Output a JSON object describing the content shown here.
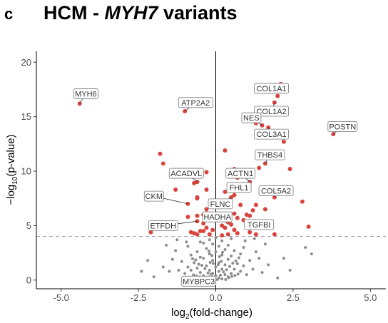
{
  "panel_letter": "c",
  "title": {
    "prefix": "HCM - ",
    "gene": "MYH7",
    "suffix": " variants"
  },
  "colors": {
    "significant": "#d9443e",
    "nonsignificant": "#8c8c8c",
    "threshold": "#999999"
  },
  "chart_data": {
    "type": "scatter",
    "title": "HCM - MYH7 variants",
    "xlabel_prefix": "log",
    "xlabel_sub": "2",
    "xlabel_suffix": "(fold-change)",
    "ylabel_prefix": "−log",
    "ylabel_sub": "10",
    "ylabel_suffix": "(p-value)",
    "xlim": [
      -5.8,
      5.5
    ],
    "ylim": [
      -0.8,
      21
    ],
    "xticks": [
      {
        "value": -5.0,
        "label": "-5.0"
      },
      {
        "value": -2.5,
        "label": "-2.5"
      },
      {
        "value": 0.0,
        "label": "0.0"
      },
      {
        "value": 2.5,
        "label": "2.5"
      },
      {
        "value": 5.0,
        "label": "5.0"
      }
    ],
    "yticks": [
      {
        "value": 0,
        "label": "0"
      },
      {
        "value": 5,
        "label": "5"
      },
      {
        "value": 10,
        "label": "10"
      },
      {
        "value": 15,
        "label": "15"
      },
      {
        "value": 20,
        "label": "20"
      }
    ],
    "threshold_y": 4.0,
    "vline_x": 0,
    "grid": false,
    "significant_points": [
      [
        -4.4,
        16.2
      ],
      [
        -1.0,
        15.5
      ],
      [
        1.5,
        14.2
      ],
      [
        1.9,
        16.3
      ],
      [
        2.1,
        18.0
      ],
      [
        2.0,
        16.9
      ],
      [
        1.3,
        14.4
      ],
      [
        1.7,
        14.0
      ],
      [
        3.8,
        13.4
      ],
      [
        2.2,
        12.7
      ],
      [
        1.6,
        13.2
      ],
      [
        -1.8,
        11.6
      ],
      [
        -1.7,
        10.7
      ],
      [
        1.6,
        10.7
      ],
      [
        1.4,
        10.3
      ],
      [
        0.3,
        11.9
      ],
      [
        0.6,
        10.2
      ],
      [
        2.4,
        10.2
      ],
      [
        0.7,
        9.4
      ],
      [
        1.1,
        9.0
      ],
      [
        0.9,
        8.7
      ],
      [
        -0.6,
        9.0
      ],
      [
        -0.7,
        8.9
      ],
      [
        -0.3,
        9.9
      ],
      [
        -0.3,
        8.3
      ],
      [
        -1.3,
        8.3
      ],
      [
        -0.6,
        7.6
      ],
      [
        -0.6,
        7.5
      ],
      [
        -0.9,
        7.0
      ],
      [
        0.3,
        8.1
      ],
      [
        0.5,
        7.6
      ],
      [
        1.9,
        7.6
      ],
      [
        0.6,
        7.8
      ],
      [
        1.3,
        6.9
      ],
      [
        1.2,
        6.4
      ],
      [
        1.6,
        6.5
      ],
      [
        2.8,
        7.2
      ],
      [
        0.8,
        6.9
      ],
      [
        -0.3,
        6.5
      ],
      [
        -0.3,
        6.1
      ],
      [
        -0.4,
        6.0
      ],
      [
        0.6,
        6.1
      ],
      [
        0.7,
        5.7
      ],
      [
        1.0,
        6.0
      ],
      [
        1.1,
        5.9
      ],
      [
        -0.3,
        5.6
      ],
      [
        -0.4,
        5.2
      ],
      [
        0.4,
        5.3
      ],
      [
        0.5,
        5.1
      ],
      [
        -0.6,
        5.4
      ],
      [
        -0.6,
        5.9
      ],
      [
        -0.3,
        4.8
      ],
      [
        0.2,
        5.0
      ],
      [
        0.3,
        4.8
      ],
      [
        0.6,
        4.6
      ],
      [
        -0.8,
        4.4
      ],
      [
        -0.7,
        4.3
      ],
      [
        -0.6,
        4.2
      ],
      [
        -0.4,
        4.5
      ],
      [
        -0.2,
        4.2
      ],
      [
        -0.1,
        4.6
      ],
      [
        0.4,
        4.2
      ],
      [
        0.2,
        4.1
      ],
      [
        0.7,
        4.3
      ],
      [
        1.1,
        4.4
      ],
      [
        1.3,
        4.2
      ],
      [
        1.9,
        4.2
      ],
      [
        -2.1,
        4.4
      ],
      [
        -0.5,
        4.5
      ],
      [
        3.0,
        4.9
      ],
      [
        0.9,
        5.5
      ],
      [
        1.4,
        5.3
      ],
      [
        -0.9,
        5.8
      ]
    ],
    "nonsignificant_points": [
      [
        -0.1,
        0.1
      ],
      [
        0.1,
        0.2
      ],
      [
        -0.2,
        0.3
      ],
      [
        0.2,
        0.1
      ],
      [
        0.0,
        0.4
      ],
      [
        -0.3,
        0.2
      ],
      [
        0.3,
        0.5
      ],
      [
        -0.1,
        0.6
      ],
      [
        0.1,
        0.8
      ],
      [
        0.2,
        1.0
      ],
      [
        -0.2,
        0.9
      ],
      [
        0.4,
        0.3
      ],
      [
        -0.4,
        0.4
      ],
      [
        0.5,
        0.6
      ],
      [
        -0.5,
        0.7
      ],
      [
        0.0,
        1.2
      ],
      [
        0.3,
        1.4
      ],
      [
        -0.3,
        1.3
      ],
      [
        0.6,
        1.0
      ],
      [
        -0.6,
        1.1
      ],
      [
        0.1,
        1.6
      ],
      [
        -0.1,
        1.8
      ],
      [
        0.4,
        1.9
      ],
      [
        -0.4,
        2.0
      ],
      [
        0.2,
        2.3
      ],
      [
        -0.2,
        2.4
      ],
      [
        0.0,
        2.6
      ],
      [
        0.5,
        2.2
      ],
      [
        -0.5,
        2.1
      ],
      [
        0.7,
        1.5
      ],
      [
        -0.7,
        1.6
      ],
      [
        0.8,
        0.8
      ],
      [
        -0.8,
        0.9
      ],
      [
        0.9,
        1.3
      ],
      [
        -0.9,
        1.2
      ],
      [
        1.0,
        0.5
      ],
      [
        -1.0,
        0.6
      ],
      [
        0.3,
        2.8
      ],
      [
        -0.3,
        2.9
      ],
      [
        0.1,
        3.1
      ],
      [
        -0.1,
        3.3
      ],
      [
        0.6,
        2.7
      ],
      [
        -0.6,
        2.6
      ],
      [
        0.4,
        3.2
      ],
      [
        -0.4,
        3.4
      ],
      [
        0.2,
        3.6
      ],
      [
        -0.2,
        3.7
      ],
      [
        0.8,
        2.4
      ],
      [
        -0.8,
        2.3
      ],
      [
        1.1,
        1.8
      ],
      [
        -1.1,
        1.7
      ],
      [
        1.2,
        1.0
      ],
      [
        -1.2,
        0.9
      ],
      [
        0.0,
        3.9
      ],
      [
        0.5,
        3.8
      ],
      [
        -0.5,
        3.5
      ],
      [
        0.9,
        3.0
      ],
      [
        -0.9,
        3.1
      ],
      [
        1.4,
        2.0
      ],
      [
        -1.4,
        1.9
      ],
      [
        1.5,
        0.7
      ],
      [
        -1.5,
        0.8
      ],
      [
        1.7,
        1.4
      ],
      [
        -1.7,
        1.2
      ],
      [
        -2.4,
        0.8
      ],
      [
        2.4,
        0.9
      ],
      [
        2.9,
        3.0
      ],
      [
        -2.0,
        0.3
      ],
      [
        2.0,
        0.2
      ],
      [
        0.05,
        0.05
      ],
      [
        -0.05,
        0.15
      ],
      [
        0.15,
        0.45
      ],
      [
        -0.15,
        0.55
      ],
      [
        0.25,
        0.75
      ],
      [
        -0.25,
        0.65
      ],
      [
        0.35,
        0.95
      ],
      [
        -0.35,
        1.05
      ],
      [
        0.45,
        1.25
      ],
      [
        -0.45,
        1.35
      ],
      [
        0.55,
        1.55
      ],
      [
        -0.55,
        1.45
      ],
      [
        0.65,
        1.75
      ],
      [
        -0.65,
        1.85
      ],
      [
        0.75,
        2.05
      ],
      [
        -0.75,
        1.95
      ],
      [
        0.12,
        2.15
      ],
      [
        -0.12,
        2.25
      ],
      [
        0.22,
        2.55
      ],
      [
        -0.22,
        2.65
      ],
      [
        0.32,
        0.05
      ],
      [
        -0.32,
        0.12
      ],
      [
        0.42,
        0.22
      ],
      [
        -0.42,
        0.18
      ],
      [
        0.52,
        0.33
      ],
      [
        -0.52,
        0.28
      ],
      [
        0.62,
        0.42
      ],
      [
        -0.62,
        0.38
      ],
      [
        0.72,
        0.55
      ],
      [
        -0.72,
        0.48
      ],
      [
        0.08,
        1.42
      ],
      [
        -0.08,
        1.52
      ],
      [
        0.18,
        1.72
      ],
      [
        -0.18,
        1.62
      ],
      [
        1.3,
        2.6
      ],
      [
        -1.3,
        2.7
      ],
      [
        1.6,
        3.3
      ],
      [
        -1.6,
        3.2
      ],
      [
        2.2,
        2.0
      ],
      [
        -2.2,
        1.8
      ],
      [
        3.1,
        2.4
      ],
      [
        0.95,
        3.6
      ],
      [
        -0.95,
        3.5
      ],
      [
        1.25,
        3.8
      ],
      [
        -1.25,
        3.7
      ]
    ],
    "labels": [
      {
        "gene": "MYH6",
        "x": -4.4,
        "y": 16.2,
        "lx": -4.2,
        "ly": 17.1
      },
      {
        "gene": "ATP2A2",
        "x": -1.0,
        "y": 15.5,
        "lx": -0.65,
        "ly": 16.3
      },
      {
        "gene": "COL1A1",
        "x": 2.1,
        "y": 18.0,
        "lx": 1.8,
        "ly": 17.6
      },
      {
        "gene": "COL1A2",
        "x": 1.9,
        "y": 16.3,
        "lx": 1.8,
        "ly": 15.5
      },
      {
        "gene": "NES",
        "x": 1.5,
        "y": 14.2,
        "lx": 1.15,
        "ly": 14.9
      },
      {
        "gene": "COL3A1",
        "x": 1.7,
        "y": 14.0,
        "lx": 1.8,
        "ly": 13.4
      },
      {
        "gene": "POSTN",
        "x": 3.8,
        "y": 13.4,
        "lx": 4.1,
        "ly": 14.1
      },
      {
        "gene": "THBS4",
        "x": 1.6,
        "y": 10.7,
        "lx": 1.75,
        "ly": 11.5
      },
      {
        "gene": "ACTN1",
        "x": 1.1,
        "y": 9.0,
        "lx": 0.8,
        "ly": 9.8
      },
      {
        "gene": "ACADVL",
        "x": -0.6,
        "y": 9.0,
        "lx": -0.95,
        "ly": 9.8
      },
      {
        "gene": "FHL1",
        "x": 0.9,
        "y": 8.7,
        "lx": 0.75,
        "ly": 8.5
      },
      {
        "gene": "COL5A2",
        "x": 1.9,
        "y": 7.6,
        "lx": 1.95,
        "ly": 8.2
      },
      {
        "gene": "CKM",
        "x": -0.9,
        "y": 7.0,
        "lx": -2.0,
        "ly": 7.7
      },
      {
        "gene": "FLNC",
        "x": 0.5,
        "y": 7.6,
        "lx": 0.15,
        "ly": 7.0
      },
      {
        "gene": "HADHA",
        "x": 0.3,
        "y": 5.3,
        "lx": 0.05,
        "ly": 5.8
      },
      {
        "gene": "TGFBI",
        "x": 1.3,
        "y": 5.3,
        "lx": 1.4,
        "ly": 5.1
      },
      {
        "gene": "ETFDH",
        "x": -0.6,
        "y": 5.4,
        "lx": -1.7,
        "ly": 5.0
      },
      {
        "gene": "MYBPC3",
        "x": -0.1,
        "y": 0.4,
        "lx": -0.55,
        "ly": -0.1
      }
    ]
  }
}
